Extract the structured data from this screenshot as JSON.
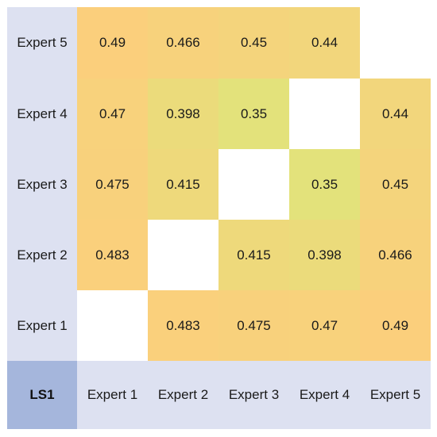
{
  "chart_data": {
    "type": "heatmap",
    "corner_label": "LS1",
    "rows": [
      "Expert 5",
      "Expert 4",
      "Expert 3",
      "Expert 2",
      "Expert 1"
    ],
    "columns": [
      "Expert 1",
      "Expert 2",
      "Expert 3",
      "Expert 4",
      "Expert 5"
    ],
    "values": [
      [
        0.49,
        0.466,
        0.45,
        0.44,
        null
      ],
      [
        0.47,
        0.398,
        0.35,
        null,
        0.44
      ],
      [
        0.475,
        0.415,
        null,
        0.35,
        0.45
      ],
      [
        0.483,
        null,
        0.415,
        0.398,
        0.466
      ],
      [
        null,
        0.483,
        0.475,
        0.47,
        0.49
      ]
    ],
    "value_labels": [
      [
        "0.49",
        "0.466",
        "0.45",
        "0.44",
        ""
      ],
      [
        "0.47",
        "0.398",
        "0.35",
        "",
        "0.44"
      ],
      [
        "0.475",
        "0.415",
        "",
        "0.35",
        "0.45"
      ],
      [
        "0.483",
        "",
        "0.415",
        "0.398",
        "0.466"
      ],
      [
        "",
        "0.483",
        "0.475",
        "0.47",
        "0.49"
      ]
    ],
    "color_scale": {
      "low": "#e3e27b",
      "high": "#fbcf7c",
      "min": 0.35,
      "max": 0.49
    },
    "missing_color": "#ffffff",
    "label_background": "#dde1f1",
    "corner_background": "#a5b6dc"
  }
}
